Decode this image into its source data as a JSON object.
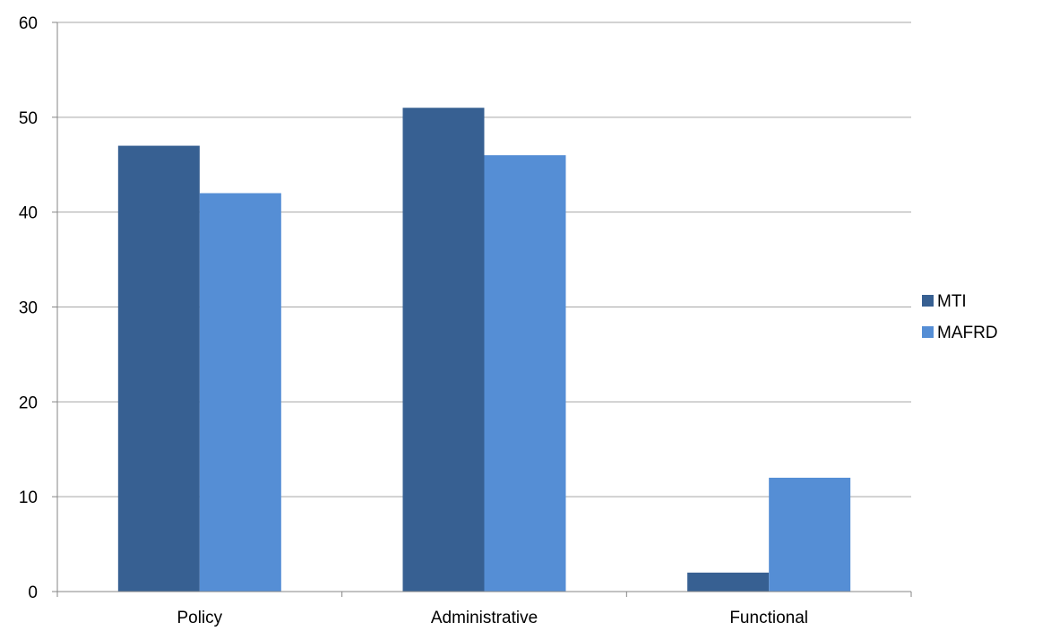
{
  "chart_data": {
    "type": "bar",
    "title": "",
    "xlabel": "",
    "ylabel": "",
    "categories": [
      "Policy",
      "Administrative",
      "Functional"
    ],
    "series": [
      {
        "name": "MTI",
        "values": [
          47,
          51,
          2
        ],
        "color": "#376092"
      },
      {
        "name": "MAFRD",
        "values": [
          42,
          46,
          12
        ],
        "color": "#558ED5"
      }
    ],
    "ylim": [
      0,
      60
    ],
    "yticks": [
      0,
      10,
      20,
      30,
      40,
      50,
      60
    ],
    "grid": true,
    "legend_position": "right",
    "grid_color": "#A6A6A6",
    "axis_color": "#868686"
  }
}
